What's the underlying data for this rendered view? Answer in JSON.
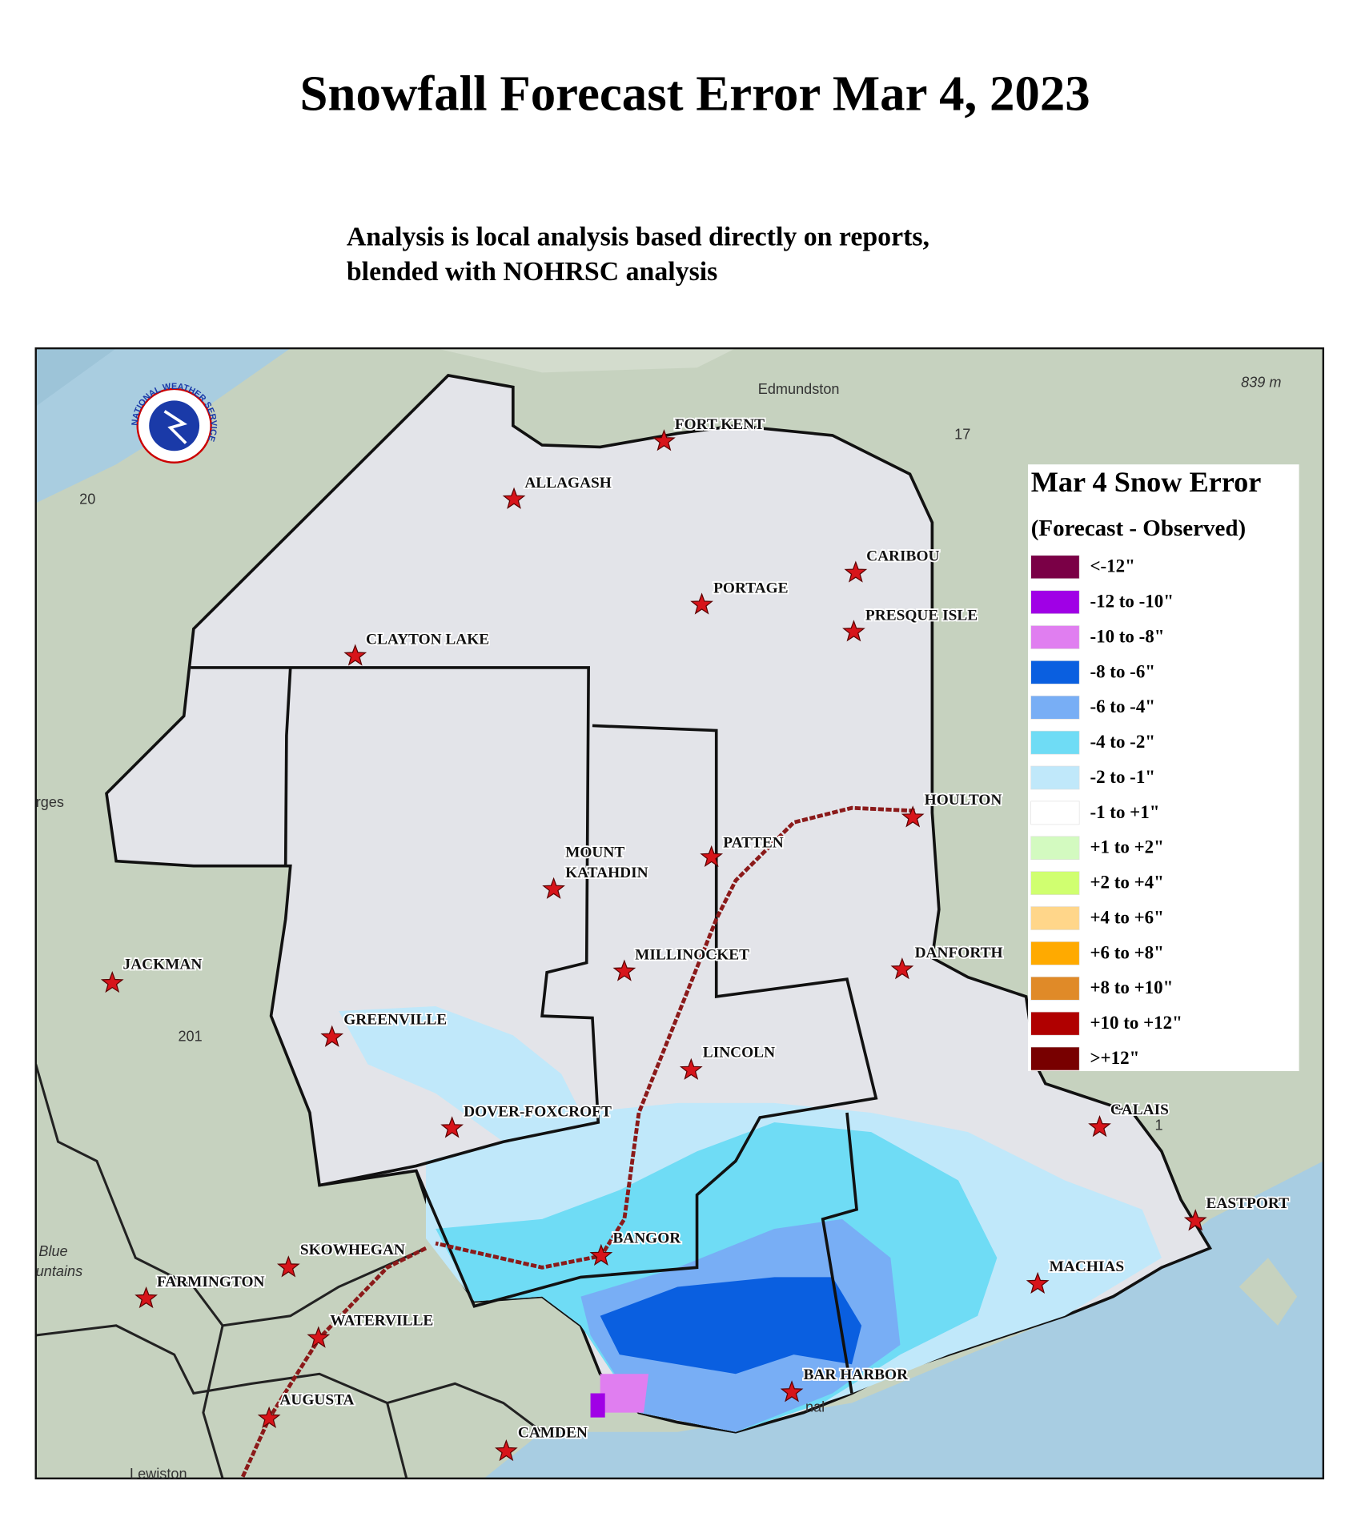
{
  "title": "Snowfall Forecast Error Mar 4, 2023",
  "subtitle": [
    "Analysis is local analysis based directly on reports,",
    "blended with NOHRSC analysis"
  ],
  "logo_text": "NATIONAL WEATHER SERVICE",
  "legend": {
    "title": "Mar 4 Snow Error",
    "subtitle": "(Forecast - Observed)",
    "items": [
      {
        "label": "<-12\"",
        "color": "#7a0046"
      },
      {
        "label": "-12 to -10\"",
        "color": "#a000e6"
      },
      {
        "label": "-10 to -8\"",
        "color": "#e07ef0"
      },
      {
        "label": "-8 to -6\"",
        "color": "#0a5fe0"
      },
      {
        "label": "-6 to -4\"",
        "color": "#78aef5"
      },
      {
        "label": "-4 to -2\"",
        "color": "#6fdcf5"
      },
      {
        "label": "-2 to -1\"",
        "color": "#c0e8fa"
      },
      {
        "label": "-1 to +1\"",
        "color": "#ffffff"
      },
      {
        "label": "+1 to +2\"",
        "color": "#d3fac0"
      },
      {
        "label": "+2 to +4\"",
        "color": "#d0ff70"
      },
      {
        "label": "+4 to +6\"",
        "color": "#ffd68a"
      },
      {
        "label": "+6 to +8\"",
        "color": "#ffaa00"
      },
      {
        "label": "+8 to +10\"",
        "color": "#e08a28"
      },
      {
        "label": "+10 to +12\"",
        "color": "#b00000"
      },
      {
        "label": ">+12\"",
        "color": "#780000"
      }
    ]
  },
  "cities": [
    {
      "name": "FORT KENT"
    },
    {
      "name": "ALLAGASH"
    },
    {
      "name": "CARIBOU"
    },
    {
      "name": "PORTAGE"
    },
    {
      "name": "PRESQUE ISLE"
    },
    {
      "name": "CLAYTON LAKE"
    },
    {
      "name": "HOULTON"
    },
    {
      "name": "PATTEN"
    },
    {
      "name": [
        "MOUNT",
        "KATAHDIN"
      ]
    },
    {
      "name": "DANFORTH"
    },
    {
      "name": "JACKMAN"
    },
    {
      "name": "MILLINOCKET"
    },
    {
      "name": "GREENVILLE"
    },
    {
      "name": "LINCOLN"
    },
    {
      "name": "DOVER-FOXCROFT"
    },
    {
      "name": "CALAIS"
    },
    {
      "name": "EASTPORT"
    },
    {
      "name": "BANGOR"
    },
    {
      "name": "SKOWHEGAN"
    },
    {
      "name": "MACHIAS"
    },
    {
      "name": "FARMINGTON"
    },
    {
      "name": "WATERVILLE"
    },
    {
      "name": "BAR HARBOR"
    },
    {
      "name": "AUGUSTA"
    },
    {
      "name": "CAMDEN"
    }
  ],
  "basemap_labels": [
    "Edmundston",
    "839 m",
    "17",
    "20",
    "rges",
    "201",
    "Blue",
    "untains",
    "1",
    "Lewiston",
    "nal"
  ]
}
